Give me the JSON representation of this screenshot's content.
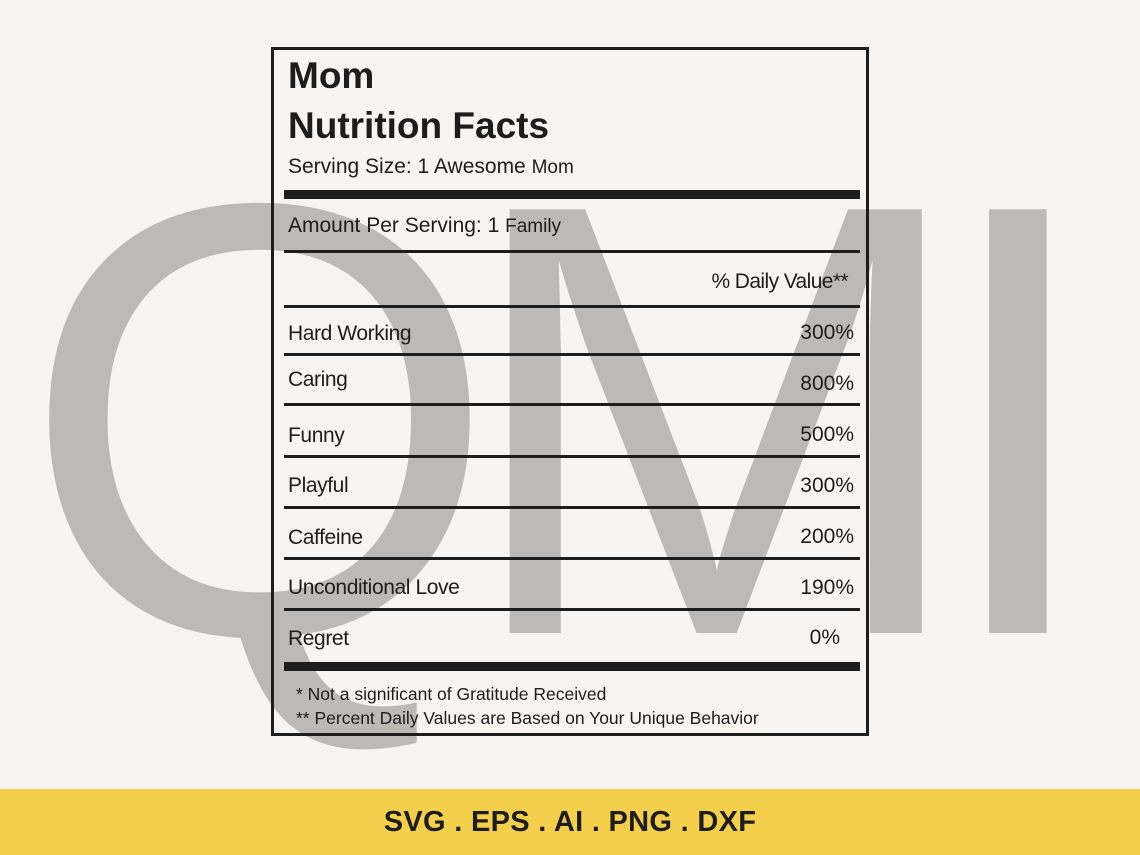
{
  "watermark": {
    "text": "QMI"
  },
  "label": {
    "title_line1": "Mom",
    "title_line2": "Nutrition Facts",
    "serving_size": {
      "prefix": "Serving Size: 1 Awesome ",
      "suffix": "Mom"
    },
    "amount_per_serving": {
      "prefix": "Amount Per Serving: 1 ",
      "suffix": "Family"
    },
    "daily_value_header": "% Daily Value**",
    "rows": [
      {
        "label": "Hard Working",
        "value": "300%"
      },
      {
        "label": "Caring",
        "value": "800%"
      },
      {
        "label": "Funny",
        "value": "500%"
      },
      {
        "label": "Playful",
        "value": "300%"
      },
      {
        "label": "Caffeine",
        "value": "200%"
      },
      {
        "label": "Unconditional Love",
        "value": "190%"
      },
      {
        "label": "Regret",
        "value": "0%"
      }
    ],
    "footnotes": [
      "* Not a significant of Gratitude Received",
      "** Percent Daily Values are Based on Your Unique Behavior"
    ]
  },
  "banner": {
    "formats": "SVG . EPS . AI . PNG . DXF"
  },
  "colors": {
    "background": "#f8f4f1",
    "watermark": "#bdb9b6",
    "banner": "#f4cf4c",
    "ink": "#1d1d1d"
  }
}
